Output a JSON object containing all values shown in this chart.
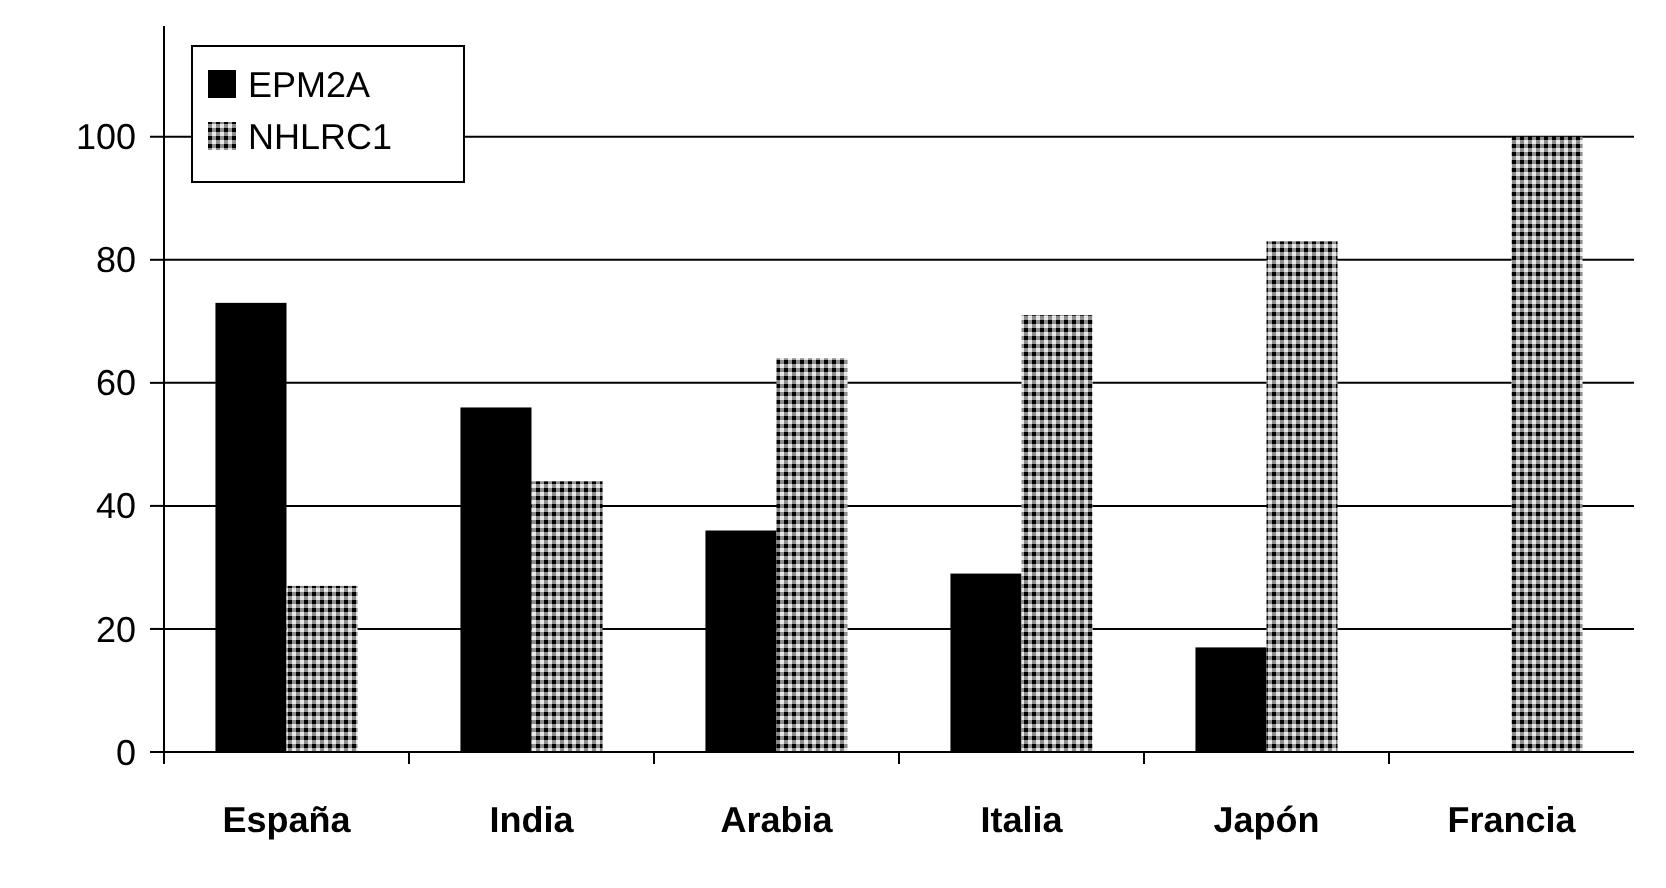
{
  "chart_data": {
    "type": "bar",
    "categories": [
      "España",
      "India",
      "Arabia",
      "Italia",
      "Japón",
      "Francia"
    ],
    "series": [
      {
        "name": "EPM2A",
        "color": "#000000",
        "values": [
          73,
          56,
          36,
          29,
          17,
          0
        ]
      },
      {
        "name": "NHLRC1",
        "color": "#8c8c8c",
        "values": [
          27,
          44,
          64,
          71,
          83,
          100
        ]
      }
    ],
    "ylim": [
      0,
      118
    ],
    "yticks": [
      0,
      20,
      40,
      60,
      80,
      100
    ],
    "grid": "y",
    "legend": "top left"
  }
}
